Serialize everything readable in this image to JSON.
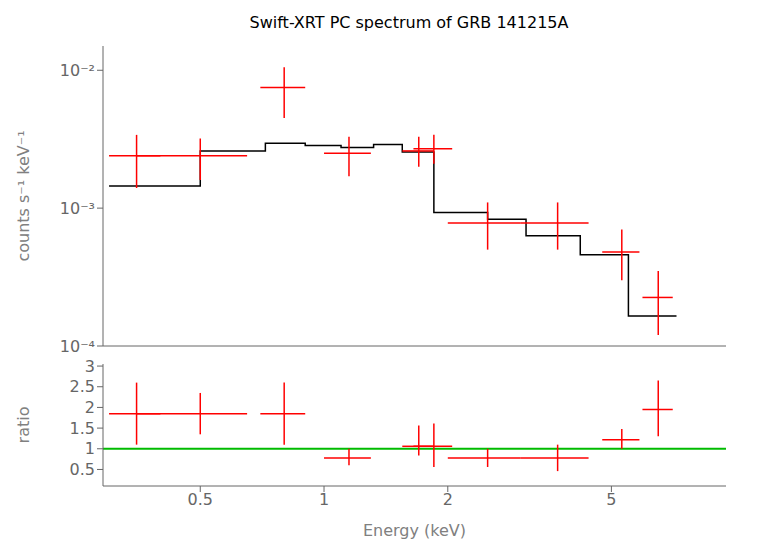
{
  "chart_data": [
    {
      "type": "line",
      "title": "Swift-XRT PC spectrum of GRB 141215A",
      "ylabel": "counts s⁻¹ keV⁻¹",
      "log": true,
      "grid": false,
      "tick_labels": "y",
      "xlim": [
        0.29,
        9.5
      ],
      "ylim": [
        0.0001,
        0.015
      ],
      "yticks": [
        {
          "value": 0.0001,
          "label": "10⁻⁴"
        },
        {
          "value": 0.001,
          "label": "10⁻³"
        },
        {
          "value": 0.01,
          "label": "10⁻²"
        }
      ],
      "series": [
        {
          "type": "line",
          "color": "#000000",
          "x": [
            0.3,
            0.5,
            0.5,
            0.72,
            0.72,
            0.9,
            0.9,
            1.1,
            1.1,
            1.32,
            1.32,
            1.55,
            1.55,
            1.85,
            1.85,
            2.5,
            2.5,
            3.1,
            3.1,
            4.2,
            4.2,
            5.5,
            5.5,
            7.2
          ],
          "values": [
            0.00145,
            0.00145,
            0.0026,
            0.0026,
            0.00295,
            0.00295,
            0.00285,
            0.00285,
            0.00275,
            0.00275,
            0.0029,
            0.0029,
            0.00255,
            0.00255,
            0.00093,
            0.00093,
            0.00083,
            0.00083,
            0.00063,
            0.00063,
            0.00046,
            0.00046,
            0.000165,
            0.000165
          ]
        },
        {
          "type": "errorbar",
          "color": "#ff0000",
          "x": [
            0.35,
            0.5,
            0.8,
            1.15,
            1.7,
            1.85,
            2.5,
            3.7,
            5.3,
            6.5
          ],
          "values": [
            0.0024,
            0.0024,
            0.0075,
            0.0025,
            0.0026,
            0.0027,
            0.00078,
            0.00078,
            0.00048,
            0.000225
          ],
          "xerr_lo": [
            0.05,
            0.15,
            0.1,
            0.15,
            0.15,
            0.2,
            0.5,
            0.7,
            0.55,
            0.55
          ],
          "xerr_hi": [
            0.05,
            0.15,
            0.1,
            0.15,
            0.15,
            0.2,
            0.5,
            0.7,
            0.55,
            0.55
          ],
          "yerr_lo": [
            0.001,
            0.0008,
            0.003,
            0.0008,
            0.0006,
            0.0006,
            0.00028,
            0.00028,
            0.00018,
            0.000105
          ],
          "yerr_hi": [
            0.001,
            0.0008,
            0.003,
            0.0008,
            0.0007,
            0.0007,
            0.00032,
            0.00032,
            0.00022,
            0.000125
          ]
        }
      ]
    },
    {
      "type": "errorbar",
      "xlabel": "Energy (keV)",
      "ylabel": "ratio",
      "log": "x",
      "grid": false,
      "xlim": [
        0.29,
        9.5
      ],
      "ylim": [
        0.1,
        3.05
      ],
      "xticks": [
        0.5,
        1,
        2,
        5
      ],
      "yticks": [
        0.5,
        1,
        1.5,
        2,
        2.5,
        3
      ],
      "reference_lines": [
        {
          "y": 1.0,
          "color": "#00bb00"
        }
      ],
      "series": [
        {
          "type": "errorbar",
          "color": "#ff0000",
          "x": [
            0.35,
            0.5,
            0.8,
            1.15,
            1.7,
            1.85,
            2.5,
            3.7,
            5.3,
            6.5
          ],
          "values": [
            1.85,
            1.85,
            1.85,
            0.78,
            1.06,
            1.06,
            0.78,
            0.78,
            1.22,
            1.95
          ],
          "xerr_lo": [
            0.05,
            0.15,
            0.1,
            0.15,
            0.15,
            0.2,
            0.5,
            0.7,
            0.55,
            0.55
          ],
          "xerr_hi": [
            0.05,
            0.15,
            0.1,
            0.15,
            0.15,
            0.2,
            0.5,
            0.7,
            0.55,
            0.55
          ],
          "yerr_lo": [
            0.75,
            0.5,
            0.75,
            0.18,
            0.22,
            0.5,
            0.22,
            0.32,
            0.22,
            0.65
          ],
          "yerr_hi": [
            0.75,
            0.5,
            0.75,
            0.22,
            0.5,
            0.55,
            0.22,
            0.32,
            0.26,
            0.7
          ]
        }
      ]
    }
  ]
}
